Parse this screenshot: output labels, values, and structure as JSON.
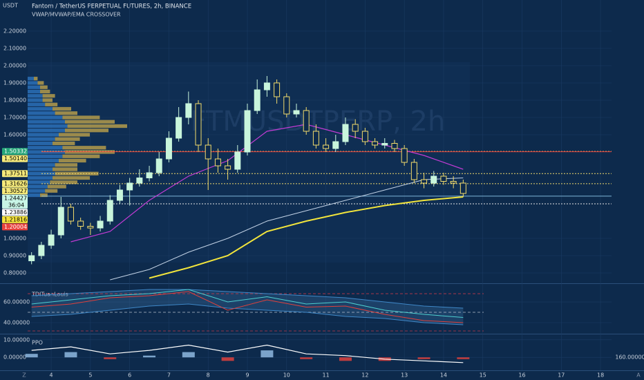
{
  "chart_data": [
    {
      "type": "candlestick",
      "title": "Fantom / TetherUS PERPETUAL FUTURES, 2h, BINANCE",
      "subtitle": "VWAP/MVWAP/EMA CROSSOVER",
      "unit": "USDT",
      "watermark": "FTMUSDTPERP, 2h",
      "xlim": [
        3.4,
        18.28
      ],
      "xticks": [
        4,
        5,
        6,
        7,
        8,
        9,
        10,
        11,
        12,
        13,
        14,
        15,
        16,
        17,
        18
      ],
      "ylim": [
        0.74,
        2.38
      ],
      "yticks": [
        {
          "value": 2.2,
          "label": "2.20000"
        },
        {
          "value": 2.1,
          "label": "2.10000"
        },
        {
          "value": 2.0,
          "label": "2.00000"
        },
        {
          "value": 1.9,
          "label": "1.90000"
        },
        {
          "value": 1.8,
          "label": "1.80000"
        },
        {
          "value": 1.7,
          "label": "1.70000"
        },
        {
          "value": 1.6,
          "label": "1.60000"
        },
        {
          "value": 1.0,
          "label": "1.00000"
        },
        {
          "value": 0.9,
          "label": "0.90000"
        },
        {
          "value": 0.8,
          "label": "0.80000"
        }
      ],
      "grid": true,
      "up_color": "#c8f5dc",
      "down_color": "#f3dc6c",
      "x": [
        3.5,
        3.75,
        4,
        4.25,
        4.5,
        4.75,
        5,
        5.25,
        5.5,
        5.75,
        6,
        6.25,
        6.5,
        6.75,
        7,
        7.25,
        7.5,
        7.75,
        8,
        8.25,
        8.5,
        8.75,
        9,
        9.25,
        9.5,
        9.75,
        10,
        10.25,
        10.5,
        10.75,
        11,
        11.25,
        11.5,
        11.75,
        12,
        12.25,
        12.5,
        12.75,
        13,
        13.25,
        13.5,
        13.75,
        14,
        14.25,
        14.5
      ],
      "open": [
        0.87,
        0.9,
        0.96,
        1.02,
        1.18,
        1.1,
        1.07,
        1.06,
        1.1,
        1.22,
        1.28,
        1.32,
        1.35,
        1.38,
        1.46,
        1.58,
        1.7,
        1.78,
        1.54,
        1.46,
        1.42,
        1.4,
        1.5,
        1.74,
        1.86,
        1.9,
        1.82,
        1.72,
        1.74,
        1.62,
        1.54,
        1.52,
        1.56,
        1.66,
        1.62,
        1.56,
        1.54,
        1.55,
        1.52,
        1.44,
        1.34,
        1.32,
        1.36,
        1.33,
        1.32
      ],
      "high": [
        0.92,
        0.98,
        1.05,
        1.24,
        1.2,
        1.12,
        1.09,
        1.13,
        1.25,
        1.31,
        1.35,
        1.4,
        1.42,
        1.5,
        1.62,
        1.76,
        1.85,
        1.8,
        1.58,
        1.52,
        1.46,
        1.54,
        1.78,
        1.92,
        1.94,
        1.92,
        1.84,
        1.78,
        1.76,
        1.66,
        1.58,
        1.6,
        1.7,
        1.69,
        1.64,
        1.58,
        1.58,
        1.57,
        1.54,
        1.46,
        1.38,
        1.39,
        1.38,
        1.36,
        1.34
      ],
      "low": [
        0.85,
        0.88,
        0.94,
        1.0,
        1.08,
        1.05,
        1.02,
        1.04,
        1.08,
        1.2,
        1.19,
        1.3,
        1.33,
        1.36,
        1.44,
        1.56,
        1.66,
        1.5,
        1.28,
        1.38,
        1.34,
        1.38,
        1.48,
        1.72,
        1.82,
        1.78,
        1.7,
        1.7,
        1.6,
        1.52,
        1.5,
        1.5,
        1.54,
        1.58,
        1.54,
        1.52,
        1.52,
        1.5,
        1.42,
        1.32,
        1.29,
        1.3,
        1.31,
        1.29,
        1.24
      ],
      "close": [
        0.9,
        0.96,
        1.02,
        1.18,
        1.1,
        1.07,
        1.06,
        1.1,
        1.22,
        1.28,
        1.32,
        1.35,
        1.38,
        1.46,
        1.58,
        1.7,
        1.78,
        1.54,
        1.46,
        1.42,
        1.4,
        1.5,
        1.74,
        1.86,
        1.9,
        1.82,
        1.72,
        1.74,
        1.62,
        1.54,
        1.52,
        1.56,
        1.66,
        1.62,
        1.56,
        1.54,
        1.55,
        1.52,
        1.44,
        1.34,
        1.32,
        1.36,
        1.33,
        1.32,
        1.26
      ],
      "series": [
        {
          "color": "#c3d3e6",
          "width": 1,
          "x": [
            3.5,
            4.5,
            5.5,
            6.5,
            7.5,
            8.5,
            9.5,
            10.5,
            11.5,
            12.5,
            13.5,
            14.5
          ],
          "values": [
            null,
            null,
            0.76,
            0.82,
            0.92,
            1.0,
            1.1,
            1.16,
            1.22,
            1.28,
            1.34,
            1.35
          ]
        },
        {
          "color": "#f2e53c",
          "width": 2,
          "x": [
            3.5,
            4.5,
            5.5,
            6.5,
            7.5,
            8.5,
            9.5,
            10.5,
            11.5,
            12.5,
            13.5,
            14.5
          ],
          "values": [
            null,
            null,
            null,
            0.77,
            0.83,
            0.9,
            1.04,
            1.1,
            1.15,
            1.19,
            1.22,
            1.24
          ]
        },
        {
          "color": "#c23bd4",
          "width": 1.2,
          "x": [
            3.5,
            4.5,
            5.5,
            6.5,
            7.5,
            8.5,
            9.5,
            10.5,
            11.5,
            12.5,
            13.5,
            14.5
          ],
          "values": [
            null,
            0.98,
            1.04,
            1.22,
            1.36,
            1.45,
            1.62,
            1.66,
            1.6,
            1.54,
            1.48,
            1.4
          ]
        }
      ],
      "levels": [
        {
          "value": 1.50332,
          "color": "#f3dc6c",
          "style": "dotted"
        },
        {
          "value": 1.5014,
          "color": "#e8413c",
          "style": "solid"
        },
        {
          "value": 1.37511,
          "color": "#f3dc6c",
          "style": "dotted"
        },
        {
          "value": 1.31626,
          "color": "#f3dc6c",
          "style": "dotted"
        },
        {
          "value": 1.24427,
          "color": "#7fb6d9",
          "style": "solid"
        },
        {
          "value": 1.20004,
          "color": "#e6e6e6",
          "style": "dotted"
        }
      ],
      "price_markers": [
        {
          "value": 1.50332,
          "label": "1.50332",
          "color": "#26a67a",
          "text_color": "#ffffff"
        },
        {
          "value": 1.5014,
          "label": "1.50140",
          "color": "#f5e97a",
          "text_color": "#000000"
        },
        {
          "value": 1.37511,
          "label": "1.37511",
          "color": "#f5e97a",
          "text_color": "#000000"
        },
        {
          "value": 1.31626,
          "label": "1.31626",
          "color": "#f5e97a",
          "text_color": "#000000"
        },
        {
          "value": 1.30527,
          "label": "1.30527",
          "color": "#f5e97a",
          "text_color": "#000000"
        },
        {
          "value": 1.24427,
          "label": "1.24427",
          "color": "#c8f5e6",
          "text_color": "#000000",
          "countdown": "36:04"
        },
        {
          "value": 1.23886,
          "label": "1.23886",
          "color": "#ffffff",
          "text_color": "#000000"
        },
        {
          "value": 1.21816,
          "label": "1.21816",
          "color": "#f5e23c",
          "text_color": "#000000"
        },
        {
          "value": 1.20004,
          "label": "1.20004",
          "color": "#e8413c",
          "text_color": "#ffffff"
        }
      ],
      "volume_profile": {
        "prices": [
          1.925,
          1.9,
          1.875,
          1.85,
          1.825,
          1.8,
          1.775,
          1.75,
          1.725,
          1.7,
          1.675,
          1.65,
          1.625,
          1.6,
          1.575,
          1.55,
          1.525,
          1.5,
          1.475,
          1.45,
          1.425,
          1.4,
          1.375,
          1.35,
          1.325,
          1.3,
          1.275,
          1.25
        ],
        "xlim": [
          0,
          100
        ],
        "series": [
          {
            "color": "#2f78c4",
            "values": [
              5,
              8,
              10,
              10,
              12,
              12,
              14,
              20,
              22,
              28,
              30,
              32,
              30,
              25,
              22,
              20,
              28,
              30,
              28,
              25,
              22,
              20,
              22,
              20,
              18,
              16,
              14,
              10
            ]
          },
          {
            "color": "#c9a94a",
            "values": [
              3,
              5,
              6,
              8,
              10,
              8,
              10,
              15,
              18,
              30,
              40,
              48,
              35,
              25,
              20,
              18,
              35,
              40,
              30,
              22,
              18,
              20,
              35,
              30,
              22,
              15,
              10,
              6
            ]
          }
        ]
      }
    },
    {
      "type": "line",
      "title": "TDITuanLouis",
      "ylim": [
        30,
        76.7
      ],
      "yticks": [
        {
          "value": 60,
          "label": "60.00000"
        },
        {
          "value": 40,
          "label": "40.00000"
        }
      ],
      "levels": [
        {
          "value": 68,
          "color": "#c0394a"
        },
        {
          "value": 50,
          "color": "#b7c0cc"
        },
        {
          "value": 32,
          "color": "#c0394a"
        }
      ],
      "series": [
        {
          "color": "#3f88c8",
          "x": [
            3.5,
            4.5,
            5.5,
            6.5,
            7.5,
            8.5,
            9.5,
            10.5,
            11.5,
            12.5,
            13.5,
            14.5
          ],
          "values": [
            66,
            68,
            70,
            72,
            72,
            70,
            68,
            66,
            64,
            60,
            56,
            54
          ]
        },
        {
          "color": "#3f88c8",
          "x": [
            3.5,
            4.5,
            5.5,
            6.5,
            7.5,
            8.5,
            9.5,
            10.5,
            11.5,
            12.5,
            13.5,
            14.5
          ],
          "values": [
            46,
            48,
            52,
            56,
            58,
            54,
            52,
            50,
            46,
            44,
            40,
            38
          ]
        },
        {
          "color": "#4fd0d0",
          "x": [
            3.5,
            4.5,
            5.5,
            6.5,
            7.5,
            8.5,
            9.5,
            10.5,
            11.5,
            12.5,
            13.5,
            14.5
          ],
          "values": [
            58,
            62,
            66,
            68,
            72,
            60,
            65,
            58,
            60,
            52,
            48,
            45
          ]
        },
        {
          "color": "#e0413c",
          "x": [
            3.5,
            4.5,
            5.5,
            6.5,
            7.5,
            8.5,
            9.5,
            10.5,
            11.5,
            12.5,
            13.5,
            14.5
          ],
          "values": [
            55,
            58,
            64,
            66,
            70,
            52,
            62,
            55,
            56,
            48,
            42,
            40
          ]
        }
      ]
    },
    {
      "type": "histogram_line",
      "title": "PPO",
      "right_label": "160.00000",
      "ylim": [
        -7,
        12.7
      ],
      "yticks": [
        {
          "value": 10,
          "label": "10.00000"
        },
        {
          "value": 0,
          "label": "0.00000"
        }
      ],
      "x": [
        3.5,
        4.5,
        5.5,
        6.5,
        7.5,
        8.5,
        9.5,
        10.5,
        11.5,
        12.5,
        13.5,
        14.5
      ],
      "values": [
        2,
        3,
        -1,
        1,
        3,
        -2,
        4,
        -1,
        -2,
        -2,
        -1,
        -1
      ],
      "positive_color": "#8fb8e0",
      "negative_color": "#e0413c",
      "series": [
        {
          "color": "#ffffff",
          "x": [
            3.5,
            4.5,
            5.5,
            6.5,
            7.5,
            8.5,
            9.5,
            10.5,
            11.5,
            12.5,
            13.5,
            14.5
          ],
          "values": [
            4,
            6,
            2,
            4,
            7,
            3,
            7,
            2,
            1,
            -1,
            -2,
            -3
          ]
        }
      ]
    }
  ],
  "toolbar": {
    "left": "Z",
    "right": "A"
  }
}
